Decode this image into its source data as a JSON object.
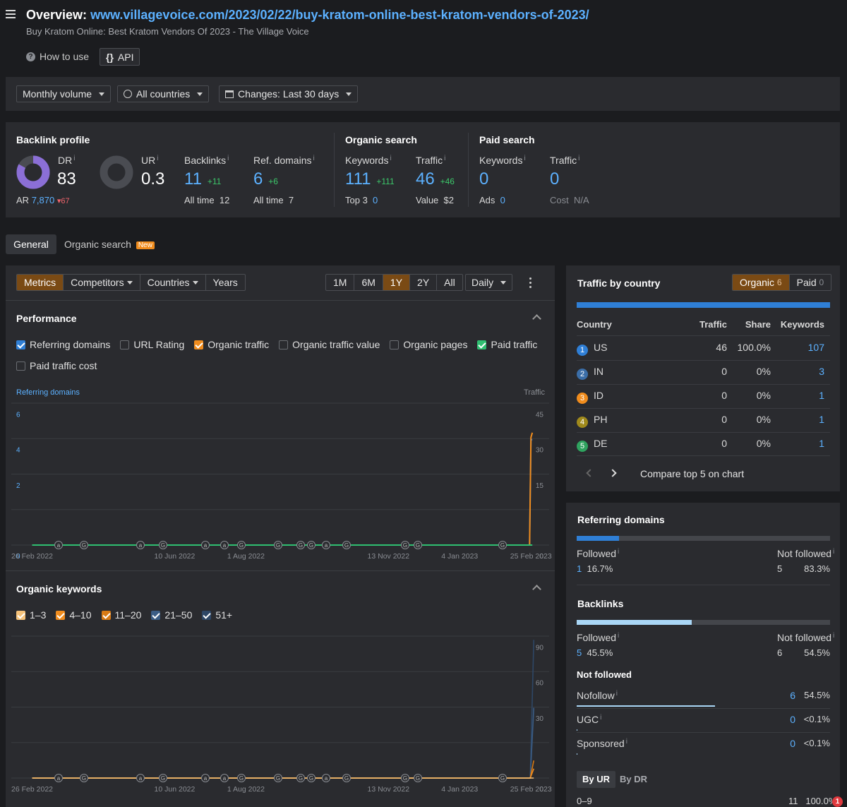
{
  "header": {
    "title_prefix": "Overview:",
    "url": "www.villagevoice.com/2023/02/22/buy-kratom-online-best-kratom-vendors-of-2023/",
    "subtitle": "Buy Kratom Online: Best Kratom Vendors Of 2023 - The Village Voice",
    "how_to_use": "How to use",
    "api": "API"
  },
  "filters": {
    "volume": "Monthly volume",
    "countries": "All countries",
    "changes": "Changes: Last 30 days"
  },
  "backlink_profile": {
    "title": "Backlink profile",
    "dr_label": "DR",
    "dr_value": "83",
    "ar_label": "AR",
    "ar_value": "7,870",
    "ar_change": "67",
    "ur_label": "UR",
    "ur_value": "0.3",
    "backlinks_label": "Backlinks",
    "backlinks_value": "11",
    "backlinks_change": "+11",
    "backlinks_alltime_label": "All time",
    "backlinks_alltime": "12",
    "refdomains_label": "Ref. domains",
    "refdomains_value": "6",
    "refdomains_change": "+6",
    "refdomains_alltime_label": "All time",
    "refdomains_alltime": "7"
  },
  "organic_search": {
    "title": "Organic search",
    "keywords_label": "Keywords",
    "keywords_value": "111",
    "keywords_change": "+111",
    "top3_label": "Top 3",
    "top3_value": "0",
    "traffic_label": "Traffic",
    "traffic_value": "46",
    "traffic_change": "+46",
    "value_label": "Value",
    "value_value": "$2"
  },
  "paid_search": {
    "title": "Paid search",
    "keywords_label": "Keywords",
    "keywords_value": "0",
    "ads_label": "Ads",
    "ads_value": "0",
    "traffic_label": "Traffic",
    "traffic_value": "0",
    "cost_label": "Cost",
    "cost_value": "N/A"
  },
  "main_tabs": {
    "general": "General",
    "organic": "Organic search",
    "new_badge": "New"
  },
  "chart_toolbar": {
    "metrics": "Metrics",
    "competitors": "Competitors",
    "countries": "Countries",
    "years": "Years",
    "ranges": [
      "1M",
      "6M",
      "1Y",
      "2Y",
      "All"
    ],
    "active_range": "1Y",
    "interval": "Daily"
  },
  "performance": {
    "title": "Performance",
    "checkboxes": [
      {
        "label": "Referring domains",
        "checked": true,
        "color": "#2f7fd6"
      },
      {
        "label": "URL Rating",
        "checked": false,
        "color": ""
      },
      {
        "label": "Organic traffic",
        "checked": true,
        "color": "#f08c1d"
      },
      {
        "label": "Organic traffic value",
        "checked": false,
        "color": ""
      },
      {
        "label": "Organic pages",
        "checked": false,
        "color": ""
      },
      {
        "label": "Paid traffic",
        "checked": true,
        "color": "#2fbf71"
      },
      {
        "label": "Paid traffic cost",
        "checked": false,
        "color": ""
      }
    ],
    "left_axis_label": "Referring domains",
    "right_axis_label": "Traffic"
  },
  "organic_keywords": {
    "title": "Organic keywords",
    "checkboxes": [
      {
        "label": "1–3",
        "color": "#f5c27a"
      },
      {
        "label": "4–10",
        "color": "#f08c1d"
      },
      {
        "label": "11–20",
        "color": "#d87a14"
      },
      {
        "label": "21–50",
        "color": "#3b5d85"
      },
      {
        "label": "51+",
        "color": "#2e4766"
      }
    ]
  },
  "chart_data": [
    {
      "type": "line",
      "title": "Performance",
      "x_labels": [
        "26 Feb 2022",
        "10 Jun 2022",
        "1 Aug 2022",
        "13 Nov 2022",
        "4 Jan 2023",
        "25 Feb 2023"
      ],
      "left_ylabel": "Referring domains",
      "left_ticks": [
        "0",
        "2",
        "4",
        "6",
        "8"
      ],
      "left_ylim": [
        0,
        8
      ],
      "right_ylabel": "Traffic",
      "right_ticks": [
        "0",
        "15",
        "30",
        "45",
        "60"
      ],
      "right_ylim": [
        0,
        60
      ],
      "series": [
        {
          "name": "Referring domains",
          "axis": "left",
          "color": "#2f7fd6",
          "x": [
            "26 Feb 2022",
            "24 Feb 2023",
            "25 Feb 2023",
            "26 Feb 2023"
          ],
          "values": [
            0,
            0,
            6,
            6
          ]
        },
        {
          "name": "Organic traffic",
          "axis": "right",
          "color": "#f08c1d",
          "x": [
            "26 Feb 2022",
            "24 Feb 2023",
            "25 Feb 2023",
            "26 Feb 2023"
          ],
          "values": [
            0,
            0,
            46,
            48
          ]
        },
        {
          "name": "Paid traffic",
          "axis": "right",
          "color": "#2fbf71",
          "x": [
            "26 Feb 2022",
            "26 Feb 2023"
          ],
          "values": [
            0,
            0
          ]
        }
      ]
    },
    {
      "type": "area",
      "title": "Organic keywords",
      "x_labels": [
        "26 Feb 2022",
        "10 Jun 2022",
        "1 Aug 2022",
        "13 Nov 2022",
        "4 Jan 2023",
        "25 Feb 2023"
      ],
      "right_ticks": [
        "0",
        "30",
        "60",
        "90",
        "120"
      ],
      "ylim": [
        0,
        120
      ],
      "series": [
        {
          "name": "1–3",
          "color": "#f5c27a",
          "values": [
            0,
            0
          ]
        },
        {
          "name": "4–10",
          "color": "#f08c1d",
          "values": [
            0,
            8
          ]
        },
        {
          "name": "11–20",
          "color": "#d87a14",
          "values": [
            0,
            15
          ]
        },
        {
          "name": "21–50",
          "color": "#3b5d85",
          "values": [
            0,
            60
          ]
        },
        {
          "name": "51+",
          "color": "#2e4766",
          "values": [
            0,
            118
          ]
        }
      ]
    }
  ],
  "traffic_by_country": {
    "title": "Traffic by country",
    "organic_label": "Organic",
    "organic_count": "6",
    "paid_label": "Paid",
    "paid_count": "0",
    "columns": [
      "Country",
      "Traffic",
      "Share",
      "Keywords"
    ],
    "rows": [
      {
        "rank": "1",
        "code": "US",
        "traffic": "46",
        "share": "100.0%",
        "keywords": "107",
        "color": "#2f7fd6"
      },
      {
        "rank": "2",
        "code": "IN",
        "traffic": "0",
        "share": "0%",
        "keywords": "3",
        "color": "#3b6ea8"
      },
      {
        "rank": "3",
        "code": "ID",
        "traffic": "0",
        "share": "0%",
        "keywords": "1",
        "color": "#f08c1d"
      },
      {
        "rank": "4",
        "code": "PH",
        "traffic": "0",
        "share": "0%",
        "keywords": "1",
        "color": "#a08a1c"
      },
      {
        "rank": "5",
        "code": "DE",
        "traffic": "0",
        "share": "0%",
        "keywords": "1",
        "color": "#2fa35f"
      }
    ],
    "compare": "Compare top 5 on chart"
  },
  "referring_domains": {
    "title": "Referring domains",
    "followed_label": "Followed",
    "followed_count": "1",
    "followed_pct": "16.7%",
    "not_followed_label": "Not followed",
    "not_followed_count": "5",
    "not_followed_pct": "83.3%",
    "followed_fraction": 0.167
  },
  "backlinks": {
    "title": "Backlinks",
    "followed_label": "Followed",
    "followed_count": "5",
    "followed_pct": "45.5%",
    "not_followed_label": "Not followed",
    "not_followed_count": "6",
    "not_followed_pct": "54.5%",
    "followed_fraction": 0.455,
    "not_followed_title": "Not followed",
    "types": [
      {
        "label": "Nofollow",
        "count": "6",
        "pct": "54.5%",
        "fraction": 0.545
      },
      {
        "label": "UGC",
        "count": "0",
        "pct": "<0.1%",
        "fraction": 0.0
      },
      {
        "label": "Sponsored",
        "count": "0",
        "pct": "<0.1%",
        "fraction": 0.0
      }
    ],
    "by_ur": "By UR",
    "by_dr": "By DR",
    "ur_row_label": "0–9",
    "ur_row_count": "11",
    "ur_row_pct": "100.0%",
    "notification": "1"
  }
}
